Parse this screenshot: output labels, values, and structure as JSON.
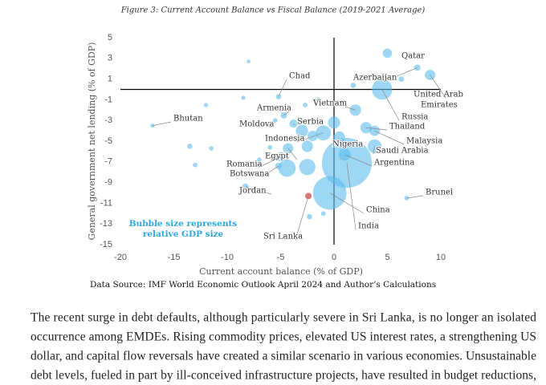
{
  "chart_data": {
    "type": "bubble",
    "title": "Figure 3: Current Account Balance vs Fiscal Balance (2019-2021 Average)",
    "x_label": "Current account balance (% of GDP)",
    "y_label": "General government net lending  (% of GDP)",
    "xlim": [
      -20,
      10
    ],
    "xticks": [
      -20,
      -15,
      -10,
      -5,
      0,
      5,
      10
    ],
    "ylim": [
      -15,
      5
    ],
    "yticks": [
      -15,
      -13,
      -11,
      -9,
      -7,
      -5,
      -3,
      -1,
      1,
      3,
      5
    ],
    "color": "#5bbcec",
    "annotation_lines": [
      "Bubble size represents",
      "relative GDP size"
    ],
    "points": [
      {
        "label": "Qatar",
        "x": 5,
        "y": 3.5,
        "size": 3
      },
      {
        "label": "Azerbaijan",
        "x": 7.8,
        "y": 2.1,
        "size": 1
      },
      {
        "label_lines": [
          "United Arab",
          "Emirates"
        ],
        "x": 9,
        "y": 1.4,
        "size": 4
      },
      {
        "label": "Russia",
        "x": 4.5,
        "y": 0,
        "size": 20
      },
      {
        "label": "Vietnam",
        "x": 2,
        "y": -2,
        "size": 5
      },
      {
        "label": "Thailand",
        "x": 3,
        "y": -3.7,
        "size": 5
      },
      {
        "label": "Malaysia",
        "x": 3.8,
        "y": -4,
        "size": 4
      },
      {
        "label": "Saudi Arabia",
        "x": 3.8,
        "y": -5.5,
        "size": 8
      },
      {
        "label": "Argentina",
        "x": 1,
        "y": -6.3,
        "size": 6
      },
      {
        "label": "Nigeria",
        "x": 0.5,
        "y": -4.6,
        "size": 5
      },
      {
        "label": "Indonesia",
        "x": -1,
        "y": -4.2,
        "size": 10
      },
      {
        "label": "Egypt",
        "x": -4.3,
        "y": -5.7,
        "size": 4
      },
      {
        "label": "Romania",
        "x": -5,
        "y": -6.5,
        "size": 3
      },
      {
        "label": "Botswana",
        "x": -5.2,
        "y": -7.4,
        "size": 1
      },
      {
        "label": "Jordan",
        "x": -8.3,
        "y": -9.4,
        "size": 1
      },
      {
        "label": "Sri Lanka",
        "x": -2.4,
        "y": -10.3,
        "size": 1,
        "color": "#d9676b"
      },
      {
        "label": "China",
        "x": -0.4,
        "y": -10,
        "size": 60
      },
      {
        "label": "India",
        "x": 1.2,
        "y": -7.1,
        "size": 140
      },
      {
        "label": "Brunei",
        "x": 6.8,
        "y": -10.5,
        "size": 0.3
      },
      {
        "label": "Armenia",
        "x": -4.7,
        "y": -2.5,
        "size": 1
      },
      {
        "label": "Moldova",
        "x": -6.5,
        "y": -3.3,
        "size": 0.5
      },
      {
        "label": "Serbia",
        "x": -3.8,
        "y": -3.3,
        "size": 2
      },
      {
        "label": "Bhutan",
        "x": -17,
        "y": -3.5,
        "size": 0.2
      },
      {
        "label": "Chad",
        "x": -5.2,
        "y": -0.7,
        "size": 0.5
      },
      {
        "x": -3,
        "y": -4,
        "size": 6
      },
      {
        "x": -2.5,
        "y": -5.5,
        "size": 5
      },
      {
        "x": -2,
        "y": -4.5,
        "size": 4
      },
      {
        "x": -2.5,
        "y": -7.5,
        "size": 12
      },
      {
        "x": -4.4,
        "y": -7.6,
        "size": 14
      },
      {
        "x": 0,
        "y": -3.2,
        "size": 6
      },
      {
        "x": -13.5,
        "y": -5.5,
        "size": 0.5
      },
      {
        "x": -11.5,
        "y": -5.7,
        "size": 0.3
      },
      {
        "x": -1.5,
        "y": -1,
        "size": 0.3
      },
      {
        "x": -2.3,
        "y": -12.3,
        "size": 0.5
      },
      {
        "x": -1,
        "y": -12,
        "size": 0.3
      },
      {
        "x": -5.5,
        "y": -3,
        "size": 0.3
      },
      {
        "x": -12,
        "y": -1.5,
        "size": 0.2
      },
      {
        "x": -8.5,
        "y": -0.8,
        "size": 0.2
      },
      {
        "x": -8,
        "y": 2.7,
        "size": 0.1
      },
      {
        "x": 1.8,
        "y": 0.4,
        "size": 0.5
      },
      {
        "x": -7,
        "y": -6.8,
        "size": 0.3
      },
      {
        "x": -13,
        "y": -7.3,
        "size": 0.3
      },
      {
        "x": -2.7,
        "y": -1.5,
        "size": 0.3
      },
      {
        "x": -6,
        "y": -5.6,
        "size": 0.3
      },
      {
        "x": 6.3,
        "y": 1,
        "size": 0.6
      }
    ]
  },
  "source": "Data Source: IMF World Economic Outlook April 2024 and Author’s Calculations",
  "paragraph_lines": [
    "The recent surge in debt defaults, although particularly severe in Sri Lanka, is no longer an isolated",
    "occurrence among EMDEs. Rising commodity prices, elevated US interest rates, a strengthening US",
    "dollar, and capital flow reversals have created a similar scenario in various economies. Unsustainable",
    "debt levels, fueled in part by ill-conceived infrastructure projects, have resulted in budget reductions,"
  ]
}
